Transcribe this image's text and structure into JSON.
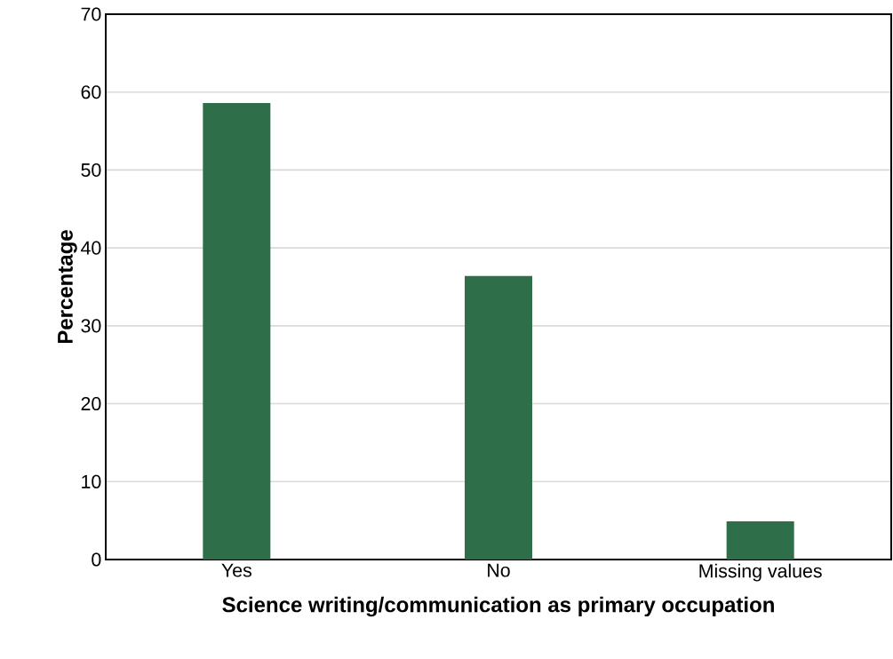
{
  "chart_data": {
    "type": "bar",
    "xlabel": "Science writing/communication as primary occupation",
    "ylabel": "Percentage",
    "categories": [
      "Yes",
      "No",
      "Missing values"
    ],
    "values": [
      58.6,
      36.4,
      4.9
    ],
    "color": "#2e6e48",
    "ylim": [
      0,
      70
    ],
    "yticks": [
      0,
      10,
      20,
      30,
      40,
      50,
      60,
      70
    ],
    "grid": "y"
  }
}
